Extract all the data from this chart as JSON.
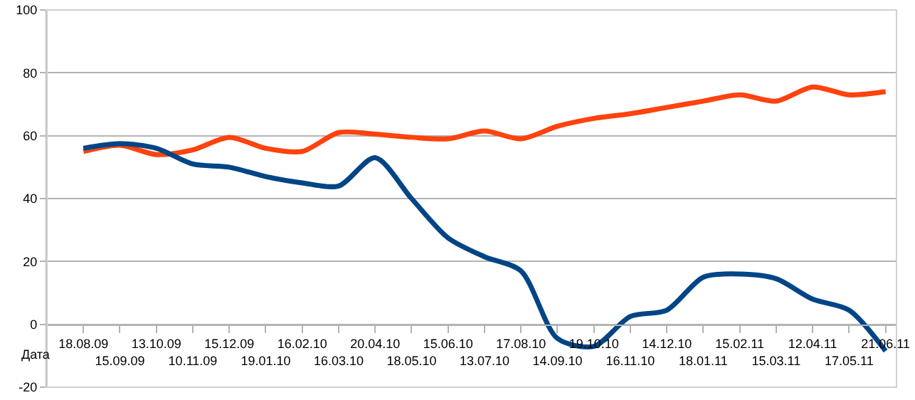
{
  "chart_data": {
    "type": "line",
    "xlabel": "Дата",
    "categories": [
      "18.08.09",
      "15.09.09",
      "13.10.09",
      "10.11.09",
      "15.12.09",
      "19.01.10",
      "16.02.10",
      "16.03.10",
      "20.04.10",
      "18.05.10",
      "15.06.10",
      "13.07.10",
      "17.08.10",
      "14.09.10",
      "19.10.10",
      "16.11.10",
      "14.12.10",
      "18.01.11",
      "15.02.11",
      "15.03.11",
      "12.04.11",
      "17.05.11",
      "21.06.11"
    ],
    "series": [
      {
        "color": "#ff420e",
        "values": [
          55,
          57,
          54,
          55.5,
          59.5,
          56,
          55,
          61,
          60.5,
          59.5,
          59,
          61.5,
          59,
          63,
          65.5,
          67,
          69,
          71,
          73,
          71,
          75.5,
          73,
          74
        ]
      },
      {
        "color": "#004586",
        "values": [
          56,
          57.5,
          56,
          51,
          50,
          47,
          45,
          44,
          53,
          40,
          27.5,
          21.5,
          17,
          -4.5,
          -7,
          2.5,
          4.5,
          15,
          16,
          14.5,
          8,
          4.5,
          -8.5
        ]
      }
    ],
    "ylim": [
      -20,
      100
    ],
    "yticks": [
      -20,
      0,
      20,
      40,
      60,
      80,
      100
    ],
    "grid": "y",
    "marker": "none",
    "line_style": "solid"
  }
}
